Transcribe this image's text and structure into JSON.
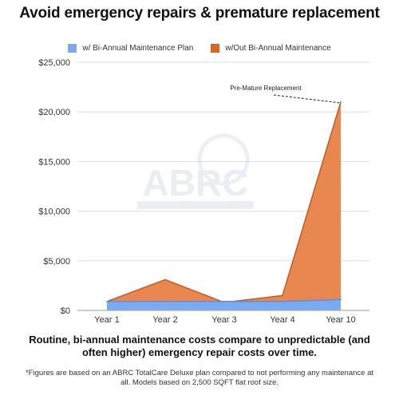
{
  "header": {
    "title": "Avoid emergency repairs & premature replacement"
  },
  "watermark": {
    "text": "ABRC"
  },
  "caption": {
    "text": "Routine, bi-annual maintenance costs compare to unpredictable (and often higher) emergency repair costs over time."
  },
  "footnote": {
    "text": "*Figures are based on an ABRC TotalCare Deluxe plan compared to not performing any maintenance at all. Models based on 2,500 SQFT flat roof size."
  },
  "chart_data": {
    "type": "area",
    "categories": [
      "Year 1",
      "Year 2",
      "Year 3",
      "Year 4",
      "Year 10"
    ],
    "series": [
      {
        "name": "w/ Bi-Annual Maintenance Plan",
        "values": [
          900,
          900,
          900,
          900,
          1100
        ],
        "color": "#7aaaf0",
        "stroke": "#5b8ee0"
      },
      {
        "name": "w/Out Bi-Annual Maintenance",
        "values": [
          900,
          3100,
          800,
          1500,
          21000
        ],
        "color": "#e8874f",
        "stroke": "#c65a1e"
      }
    ],
    "ylim": [
      0,
      25000
    ],
    "yticks": [
      {
        "value": 0,
        "label": "$0"
      },
      {
        "value": 5000,
        "label": "$5,000"
      },
      {
        "value": 10000,
        "label": "$10,000"
      },
      {
        "value": 15000,
        "label": "$15,000"
      },
      {
        "value": 20000,
        "label": "$20,000"
      },
      {
        "value": 25000,
        "label": "$25,000"
      }
    ],
    "annotation": {
      "text": "Pre-Mature Replacement",
      "target_category": "Year 10",
      "target_value": 21000
    },
    "grid": true,
    "legend_position": "top"
  }
}
